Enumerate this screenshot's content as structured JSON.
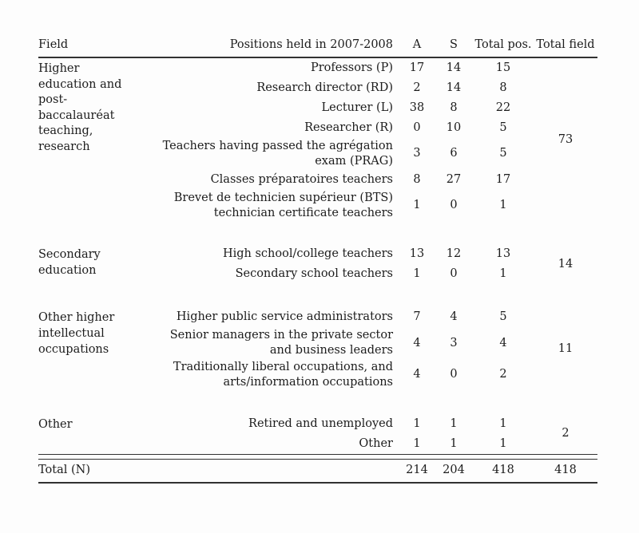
{
  "colors": {
    "background": "#fdfdfd",
    "text": "#1c1c1c",
    "rule": "#323232"
  },
  "table": {
    "headers": {
      "field": "Field",
      "positions": "Positions held in 2007-2008",
      "a": "A",
      "s": "S",
      "total_pos": "Total pos.",
      "total_field": "Total field"
    },
    "groups": [
      {
        "field": "Higher education and post-baccalauréat teaching, research",
        "total_field": "73",
        "rows": [
          {
            "position": "Professors (P)",
            "a": "17",
            "s": "14",
            "total_pos": "15"
          },
          {
            "position": "Research director (RD)",
            "a": "2",
            "s": "14",
            "total_pos": "8"
          },
          {
            "position": "Lecturer (L)",
            "a": "38",
            "s": "8",
            "total_pos": "22"
          },
          {
            "position": "Researcher (R)",
            "a": "0",
            "s": "10",
            "total_pos": "5"
          },
          {
            "position": "Teachers having passed the agrégation exam (PRAG)",
            "a": "3",
            "s": "6",
            "total_pos": "5"
          },
          {
            "position": "Classes préparatoires teachers",
            "a": "8",
            "s": "27",
            "total_pos": "17"
          },
          {
            "position": "Brevet de technicien supérieur (BTS) technician certificate teachers",
            "a": "1",
            "s": "0",
            "total_pos": "1"
          }
        ]
      },
      {
        "field": "Secondary education",
        "total_field": "14",
        "rows": [
          {
            "position": "High school/college teachers",
            "a": "13",
            "s": "12",
            "total_pos": "13"
          },
          {
            "position": "Secondary school teachers",
            "a": "1",
            "s": "0",
            "total_pos": "1"
          }
        ]
      },
      {
        "field": "Other higher intellectual occupations",
        "total_field": "11",
        "rows": [
          {
            "position": "Higher public service administrators",
            "a": "7",
            "s": "4",
            "total_pos": "5"
          },
          {
            "position": "Senior managers in the private sector and business leaders",
            "a": "4",
            "s": "3",
            "total_pos": "4"
          },
          {
            "position": "Traditionally liberal occupations, and arts/information occupations",
            "a": "4",
            "s": "0",
            "total_pos": "2"
          }
        ]
      },
      {
        "field": "Other",
        "total_field": "2",
        "rows": [
          {
            "position": "Retired and unemployed",
            "a": "1",
            "s": "1",
            "total_pos": "1"
          },
          {
            "position": "Other",
            "a": "1",
            "s": "1",
            "total_pos": "1"
          }
        ]
      }
    ],
    "total_row": {
      "label": "Total (N)",
      "a": "214",
      "s": "204",
      "total_pos": "418",
      "total_field": "418"
    }
  }
}
